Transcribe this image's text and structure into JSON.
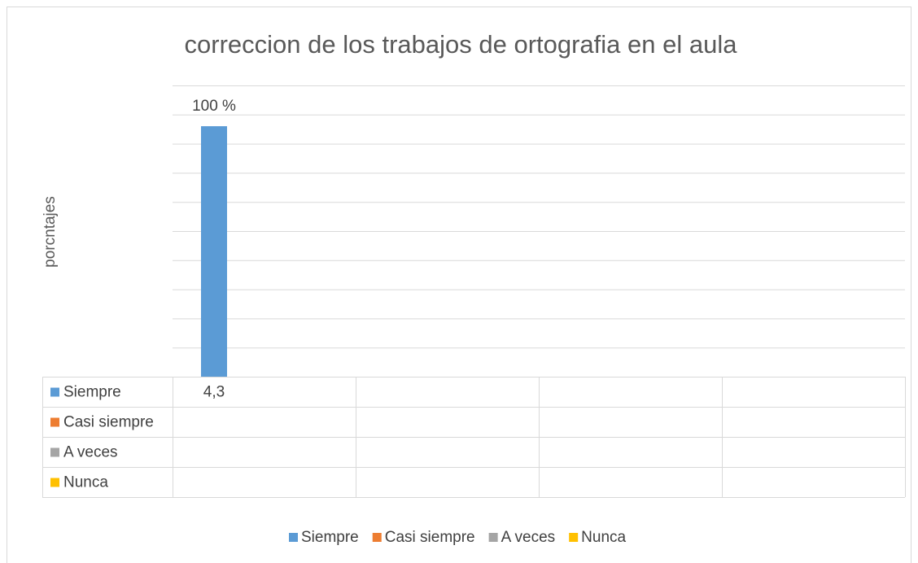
{
  "chart_data": {
    "type": "bar",
    "title": "correccion de los trabajos de ortografia en el aula",
    "ylabel": "porcntajes",
    "categories": [
      null,
      null,
      null,
      null
    ],
    "series": [
      {
        "name": "Siempre",
        "color": "#5b9bd5",
        "values": [
          4.3,
          null,
          null,
          null
        ],
        "value_labels": [
          "4,3",
          null,
          null,
          null
        ]
      },
      {
        "name": "Casi siempre",
        "color": "#ed7d31",
        "values": [
          null,
          null,
          null,
          null
        ]
      },
      {
        "name": "A veces",
        "color": "#a5a5a5",
        "values": [
          null,
          null,
          null,
          null
        ]
      },
      {
        "name": "Nunca",
        "color": "#ffc000",
        "values": [
          null,
          null,
          null,
          null
        ]
      }
    ],
    "annotations": [
      "100 %"
    ],
    "ylim": [
      0,
      5
    ],
    "yticks": [
      0,
      0.5,
      1,
      1.5,
      2,
      2.5,
      3,
      3.5,
      4,
      4.5,
      5
    ],
    "grid": true,
    "legend": "bottom"
  }
}
